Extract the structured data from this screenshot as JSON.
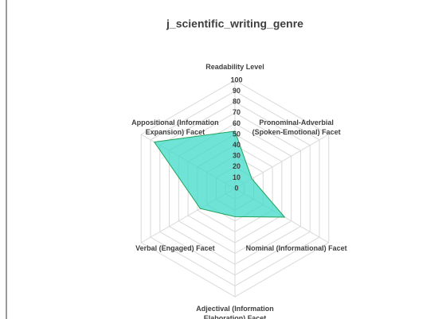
{
  "chart_data": {
    "type": "radar",
    "title": "j_scientific_writing_genre",
    "categories": [
      "Readability Level",
      "Pronominal-Adverbial (Spoken-Emotional) Facet",
      "Nominal (Informational) Facet",
      "Adjectival (Information Elaboration) Facet",
      "Verbal (Engaged) Facet",
      "Appositional (Information Expansion) Facet"
    ],
    "series": [
      {
        "color": "#3fd9c8",
        "values": [
          53,
          18,
          53,
          26,
          37,
          86
        ]
      }
    ],
    "ylim": [
      0,
      100
    ],
    "yticks": [
      0,
      10,
      20,
      30,
      40,
      50,
      60,
      70,
      80,
      90,
      100
    ],
    "grid": true
  }
}
